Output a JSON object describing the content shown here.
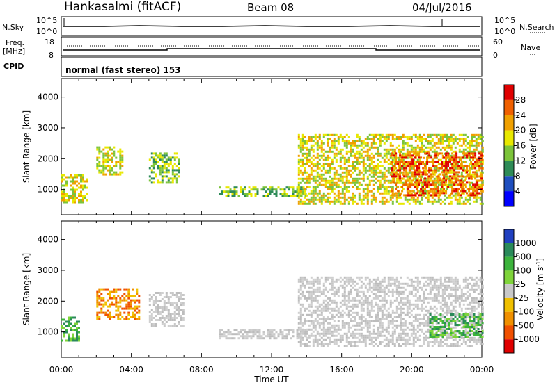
{
  "header": {
    "station": "Hankasalmi (fitACF)",
    "beam": "Beam 08",
    "date": "04/Jul/2016"
  },
  "top_strip": {
    "nsky": {
      "label": "N.Sky",
      "ticks": [
        "10^5",
        "10^0"
      ],
      "right_label": "N.Search",
      "right_ticks": [
        "10^5",
        "10^0"
      ]
    },
    "freq": {
      "label_line1": "Freq.",
      "label_line2": "[MHz]",
      "ticks": [
        "18",
        "8"
      ],
      "right_label": "Nave",
      "right_ticks": [
        "60",
        "0"
      ]
    },
    "cpid": {
      "label": "CPID",
      "text": "normal (fast stereo) 153"
    }
  },
  "chart_data": [
    {
      "type": "heatmap",
      "name": "power",
      "ylabel": "Slant Range [km]",
      "xlim_hours": [
        0,
        24
      ],
      "ylim_km": [
        180,
        4600
      ],
      "yticks": [
        1000,
        2000,
        3000,
        4000
      ],
      "colorbar": {
        "label": "Power [dB]",
        "ticks": [
          "4",
          "8",
          "12",
          "16",
          "20",
          "24",
          "28"
        ],
        "colors": [
          "#0000ff",
          "#1f4fbf",
          "#2e8b57",
          "#7cc43a",
          "#e8e800",
          "#f0a000",
          "#f06000",
          "#e00000"
        ]
      },
      "features": [
        {
          "t0": 0.0,
          "t1": 1.5,
          "r0": 600,
          "r1": 1500,
          "level": 4
        },
        {
          "t0": 2.0,
          "t1": 3.5,
          "r0": 1500,
          "r1": 2400,
          "level": 4
        },
        {
          "t0": 5.0,
          "t1": 6.7,
          "r0": 1200,
          "r1": 2200,
          "level": 3
        },
        {
          "t0": 9.0,
          "t1": 14.0,
          "r0": 800,
          "r1": 1100,
          "level": 3
        },
        {
          "t0": 13.5,
          "t1": 24.0,
          "r0": 500,
          "r1": 2800,
          "level": 4
        },
        {
          "t0": 18.8,
          "t1": 24.0,
          "r0": 800,
          "r1": 2200,
          "level": 6
        }
      ]
    },
    {
      "type": "heatmap",
      "name": "velocity",
      "xlabel": "Time UT",
      "ylabel": "Slant Range [km]",
      "xlim_hours": [
        0,
        24
      ],
      "xticks": [
        "00:00",
        "04:00",
        "08:00",
        "12:00",
        "16:00",
        "20:00",
        "00:00"
      ],
      "ylim_km": [
        180,
        4600
      ],
      "yticks": [
        1000,
        2000,
        3000,
        4000
      ],
      "colorbar": {
        "label": "Velocity [m s^-1]",
        "ticks": [
          "1000",
          "500",
          "100",
          "25",
          "-25",
          "-100",
          "-500",
          "-1000"
        ],
        "colors": [
          "#2040c0",
          "#2a8a5a",
          "#3cb33c",
          "#7fd43a",
          "#c8c8c8",
          "#f0c000",
          "#f09000",
          "#f05000",
          "#e00000"
        ]
      },
      "features": [
        {
          "t0": 0.0,
          "t1": 1.0,
          "r0": 700,
          "r1": 1500,
          "color": "green"
        },
        {
          "t0": 2.0,
          "t1": 4.5,
          "r0": 1400,
          "r1": 2400,
          "color": "orange"
        },
        {
          "t0": 5.0,
          "t1": 7.0,
          "r0": 1200,
          "r1": 2300,
          "color": "grey"
        },
        {
          "t0": 9.0,
          "t1": 14.0,
          "r0": 800,
          "r1": 1100,
          "color": "grey"
        },
        {
          "t0": 13.5,
          "t1": 24.0,
          "r0": 500,
          "r1": 2800,
          "color": "grey"
        },
        {
          "t0": 21.0,
          "t1": 24.0,
          "r0": 800,
          "r1": 1600,
          "color": "green"
        }
      ]
    }
  ]
}
